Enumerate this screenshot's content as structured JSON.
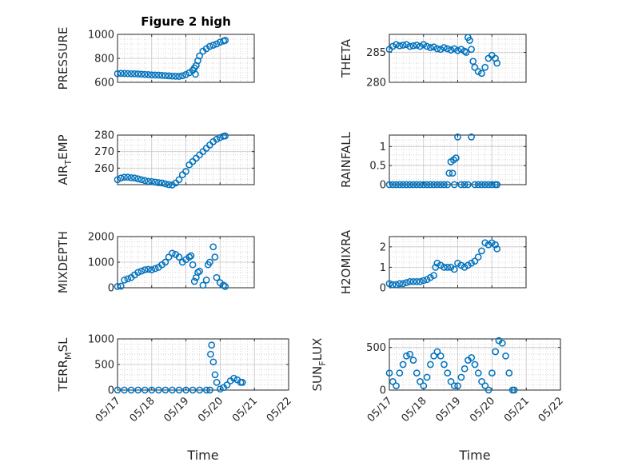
{
  "chart_data": [
    {
      "type": "scatter",
      "title": "Figure 2 high",
      "ylabel": "PRESSURE",
      "ylim": [
        600,
        1000
      ],
      "yticks": [
        600,
        800,
        1000
      ],
      "xlim": [
        0,
        4
      ],
      "grid": true,
      "color": "#0072BD",
      "points": [
        [
          0.0,
          672
        ],
        [
          0.1,
          675
        ],
        [
          0.2,
          674
        ],
        [
          0.3,
          673
        ],
        [
          0.4,
          672
        ],
        [
          0.5,
          671
        ],
        [
          0.6,
          670
        ],
        [
          0.7,
          668
        ],
        [
          0.8,
          666
        ],
        [
          0.9,
          664
        ],
        [
          1.0,
          662
        ],
        [
          1.1,
          661
        ],
        [
          1.2,
          660
        ],
        [
          1.3,
          658
        ],
        [
          1.4,
          656
        ],
        [
          1.5,
          654
        ],
        [
          1.6,
          652
        ],
        [
          1.7,
          651
        ],
        [
          1.8,
          650
        ],
        [
          1.9,
          655
        ],
        [
          2.0,
          665
        ],
        [
          2.1,
          680
        ],
        [
          2.2,
          700
        ],
        [
          2.25,
          720
        ],
        [
          2.28,
          668
        ],
        [
          2.3,
          740
        ],
        [
          2.35,
          780
        ],
        [
          2.4,
          820
        ],
        [
          2.5,
          860
        ],
        [
          2.6,
          880
        ],
        [
          2.7,
          900
        ],
        [
          2.8,
          910
        ],
        [
          2.9,
          920
        ],
        [
          3.0,
          935
        ],
        [
          3.1,
          945
        ],
        [
          3.15,
          950
        ]
      ]
    },
    {
      "type": "scatter",
      "ylabel": "THETA",
      "ylim": [
        280,
        288
      ],
      "yticks": [
        280,
        285
      ],
      "xlim": [
        0,
        4
      ],
      "grid": true,
      "color": "#0072BD",
      "points": [
        [
          0.0,
          285.5
        ],
        [
          0.1,
          286.0
        ],
        [
          0.2,
          286.3
        ],
        [
          0.3,
          286.1
        ],
        [
          0.4,
          286.2
        ],
        [
          0.5,
          286.3
        ],
        [
          0.6,
          286.0
        ],
        [
          0.7,
          286.1
        ],
        [
          0.8,
          286.2
        ],
        [
          0.9,
          286.0
        ],
        [
          1.0,
          286.3
        ],
        [
          1.1,
          286.0
        ],
        [
          1.2,
          285.8
        ],
        [
          1.3,
          285.9
        ],
        [
          1.4,
          285.6
        ],
        [
          1.5,
          285.5
        ],
        [
          1.6,
          285.8
        ],
        [
          1.7,
          285.6
        ],
        [
          1.8,
          285.4
        ],
        [
          1.9,
          285.6
        ],
        [
          2.0,
          285.3
        ],
        [
          2.1,
          285.5
        ],
        [
          2.2,
          285.2
        ],
        [
          2.25,
          285.0
        ],
        [
          2.3,
          287.5
        ],
        [
          2.35,
          287.0
        ],
        [
          2.4,
          285.5
        ],
        [
          2.45,
          283.5
        ],
        [
          2.5,
          282.5
        ],
        [
          2.6,
          281.8
        ],
        [
          2.7,
          281.5
        ],
        [
          2.8,
          282.5
        ],
        [
          2.9,
          284.0
        ],
        [
          3.0,
          284.5
        ],
        [
          3.1,
          284.0
        ],
        [
          3.15,
          283.2
        ]
      ]
    },
    {
      "type": "scatter",
      "ylabel": "AIR_TEMP",
      "ylim": [
        250,
        280
      ],
      "yticks": [
        260,
        270,
        280
      ],
      "xlim": [
        0,
        4
      ],
      "grid": true,
      "color": "#0072BD",
      "points": [
        [
          0.0,
          253
        ],
        [
          0.1,
          254
        ],
        [
          0.2,
          254.5
        ],
        [
          0.3,
          254.5
        ],
        [
          0.4,
          254.2
        ],
        [
          0.5,
          254
        ],
        [
          0.6,
          253.5
        ],
        [
          0.7,
          253
        ],
        [
          0.8,
          252.5
        ],
        [
          0.9,
          252
        ],
        [
          1.0,
          251.8
        ],
        [
          1.1,
          251.5
        ],
        [
          1.2,
          251.2
        ],
        [
          1.3,
          251
        ],
        [
          1.4,
          250.5
        ],
        [
          1.5,
          250
        ],
        [
          1.6,
          249.8
        ],
        [
          1.7,
          251
        ],
        [
          1.8,
          253
        ],
        [
          1.9,
          256
        ],
        [
          2.0,
          258
        ],
        [
          2.1,
          262
        ],
        [
          2.2,
          264
        ],
        [
          2.3,
          266
        ],
        [
          2.4,
          268
        ],
        [
          2.5,
          270
        ],
        [
          2.6,
          272
        ],
        [
          2.7,
          274
        ],
        [
          2.8,
          276
        ],
        [
          2.9,
          277.5
        ],
        [
          3.0,
          278.5
        ],
        [
          3.1,
          279.3
        ],
        [
          3.15,
          279.5
        ]
      ]
    },
    {
      "type": "scatter",
      "ylabel": "RAINFALL",
      "ylim": [
        0,
        1.3
      ],
      "yticks": [
        0,
        0.5,
        1
      ],
      "xlim": [
        0,
        4
      ],
      "grid": true,
      "color": "#0072BD",
      "points": [
        [
          0.0,
          0
        ],
        [
          0.1,
          0
        ],
        [
          0.2,
          0
        ],
        [
          0.3,
          0
        ],
        [
          0.4,
          0
        ],
        [
          0.5,
          0
        ],
        [
          0.6,
          0
        ],
        [
          0.7,
          0
        ],
        [
          0.8,
          0
        ],
        [
          0.9,
          0
        ],
        [
          1.0,
          0
        ],
        [
          1.1,
          0
        ],
        [
          1.2,
          0
        ],
        [
          1.3,
          0
        ],
        [
          1.4,
          0
        ],
        [
          1.5,
          0
        ],
        [
          1.6,
          0
        ],
        [
          1.7,
          0
        ],
        [
          1.75,
          0.3
        ],
        [
          1.8,
          0.6
        ],
        [
          1.85,
          0.3
        ],
        [
          1.88,
          0.65
        ],
        [
          1.9,
          0
        ],
        [
          1.95,
          0.7
        ],
        [
          2.0,
          1.25
        ],
        [
          2.1,
          0
        ],
        [
          2.2,
          0
        ],
        [
          2.3,
          0
        ],
        [
          2.4,
          1.25
        ],
        [
          2.5,
          0
        ],
        [
          2.6,
          0
        ],
        [
          2.7,
          0
        ],
        [
          2.8,
          0
        ],
        [
          2.9,
          0
        ],
        [
          3.0,
          0
        ],
        [
          3.1,
          0
        ],
        [
          3.15,
          0
        ]
      ]
    },
    {
      "type": "scatter",
      "ylabel": "MIXDEPTH",
      "ylim": [
        0,
        2000
      ],
      "yticks": [
        0,
        1000,
        2000
      ],
      "xlim": [
        0,
        4
      ],
      "grid": true,
      "color": "#0072BD",
      "points": [
        [
          0.0,
          50
        ],
        [
          0.1,
          60
        ],
        [
          0.2,
          300
        ],
        [
          0.3,
          350
        ],
        [
          0.4,
          400
        ],
        [
          0.5,
          500
        ],
        [
          0.6,
          600
        ],
        [
          0.7,
          650
        ],
        [
          0.8,
          700
        ],
        [
          0.9,
          720
        ],
        [
          1.0,
          700
        ],
        [
          1.1,
          750
        ],
        [
          1.2,
          800
        ],
        [
          1.3,
          900
        ],
        [
          1.4,
          1000
        ],
        [
          1.5,
          1200
        ],
        [
          1.6,
          1350
        ],
        [
          1.7,
          1300
        ],
        [
          1.8,
          1200
        ],
        [
          1.9,
          1000
        ],
        [
          2.0,
          1100
        ],
        [
          2.1,
          1200
        ],
        [
          2.15,
          1250
        ],
        [
          2.2,
          900
        ],
        [
          2.25,
          250
        ],
        [
          2.3,
          400
        ],
        [
          2.35,
          600
        ],
        [
          2.4,
          650
        ],
        [
          2.5,
          100
        ],
        [
          2.6,
          300
        ],
        [
          2.65,
          900
        ],
        [
          2.7,
          1000
        ],
        [
          2.8,
          1600
        ],
        [
          2.85,
          1200
        ],
        [
          2.9,
          400
        ],
        [
          3.0,
          200
        ],
        [
          3.1,
          100
        ],
        [
          3.15,
          50
        ]
      ]
    },
    {
      "type": "scatter",
      "ylabel": "H2OMIXRA",
      "ylim": [
        0,
        2.5
      ],
      "yticks": [
        0,
        1,
        2
      ],
      "xlim": [
        0,
        4
      ],
      "grid": true,
      "color": "#0072BD",
      "points": [
        [
          0.0,
          0.2
        ],
        [
          0.1,
          0.15
        ],
        [
          0.2,
          0.15
        ],
        [
          0.3,
          0.2
        ],
        [
          0.4,
          0.2
        ],
        [
          0.5,
          0.25
        ],
        [
          0.6,
          0.3
        ],
        [
          0.7,
          0.3
        ],
        [
          0.8,
          0.3
        ],
        [
          0.9,
          0.3
        ],
        [
          1.0,
          0.35
        ],
        [
          1.1,
          0.4
        ],
        [
          1.2,
          0.5
        ],
        [
          1.3,
          0.6
        ],
        [
          1.35,
          1.0
        ],
        [
          1.4,
          1.2
        ],
        [
          1.5,
          1.1
        ],
        [
          1.6,
          1.0
        ],
        [
          1.7,
          1.0
        ],
        [
          1.8,
          1.0
        ],
        [
          1.9,
          0.9
        ],
        [
          2.0,
          1.2
        ],
        [
          2.1,
          1.1
        ],
        [
          2.2,
          1.0
        ],
        [
          2.3,
          1.1
        ],
        [
          2.4,
          1.2
        ],
        [
          2.5,
          1.3
        ],
        [
          2.6,
          1.5
        ],
        [
          2.7,
          1.8
        ],
        [
          2.8,
          2.2
        ],
        [
          2.9,
          2.1
        ],
        [
          3.0,
          2.2
        ],
        [
          3.1,
          2.1
        ],
        [
          3.15,
          1.9
        ]
      ]
    },
    {
      "type": "scatter",
      "ylabel": "TERR_MSL",
      "ylim": [
        0,
        1000
      ],
      "yticks": [
        0,
        500,
        1000
      ],
      "xlim": [
        0,
        5
      ],
      "xticks": [
        "05/17",
        "05/18",
        "05/19",
        "05/20",
        "05/21",
        "05/22"
      ],
      "xlabel": "Time",
      "grid": true,
      "color": "#0072BD",
      "points": [
        [
          0.0,
          0
        ],
        [
          0.2,
          0
        ],
        [
          0.4,
          0
        ],
        [
          0.6,
          0
        ],
        [
          0.8,
          0
        ],
        [
          1.0,
          0
        ],
        [
          1.2,
          0
        ],
        [
          1.4,
          0
        ],
        [
          1.6,
          0
        ],
        [
          1.8,
          0
        ],
        [
          2.0,
          0
        ],
        [
          2.2,
          0
        ],
        [
          2.4,
          0
        ],
        [
          2.6,
          0
        ],
        [
          2.7,
          0
        ],
        [
          2.72,
          700
        ],
        [
          2.75,
          880
        ],
        [
          2.8,
          550
        ],
        [
          2.85,
          300
        ],
        [
          2.9,
          150
        ],
        [
          3.0,
          20
        ],
        [
          3.1,
          50
        ],
        [
          3.2,
          100
        ],
        [
          3.3,
          180
        ],
        [
          3.4,
          230
        ],
        [
          3.5,
          200
        ],
        [
          3.6,
          150
        ],
        [
          3.65,
          150
        ]
      ]
    },
    {
      "type": "scatter",
      "ylabel": "SUN_FLUX",
      "ylim": [
        0,
        600
      ],
      "yticks": [
        0,
        500
      ],
      "xlim": [
        0,
        5
      ],
      "xticks": [
        "05/17",
        "05/18",
        "05/19",
        "05/20",
        "05/21",
        "05/22"
      ],
      "xlabel": "Time",
      "grid": true,
      "color": "#0072BD",
      "points": [
        [
          0.0,
          200
        ],
        [
          0.1,
          100
        ],
        [
          0.2,
          50
        ],
        [
          0.3,
          200
        ],
        [
          0.4,
          300
        ],
        [
          0.5,
          400
        ],
        [
          0.6,
          420
        ],
        [
          0.7,
          350
        ],
        [
          0.8,
          200
        ],
        [
          0.9,
          100
        ],
        [
          1.0,
          50
        ],
        [
          1.1,
          150
        ],
        [
          1.2,
          300
        ],
        [
          1.3,
          400
        ],
        [
          1.4,
          450
        ],
        [
          1.5,
          400
        ],
        [
          1.6,
          300
        ],
        [
          1.7,
          200
        ],
        [
          1.8,
          100
        ],
        [
          1.9,
          50
        ],
        [
          2.0,
          50
        ],
        [
          2.1,
          150
        ],
        [
          2.2,
          250
        ],
        [
          2.3,
          350
        ],
        [
          2.4,
          380
        ],
        [
          2.5,
          300
        ],
        [
          2.6,
          200
        ],
        [
          2.7,
          100
        ],
        [
          2.8,
          50
        ],
        [
          2.9,
          0
        ],
        [
          3.0,
          200
        ],
        [
          3.1,
          450
        ],
        [
          3.2,
          580
        ],
        [
          3.3,
          550
        ],
        [
          3.4,
          400
        ],
        [
          3.5,
          200
        ],
        [
          3.6,
          0
        ],
        [
          3.65,
          0
        ]
      ]
    }
  ]
}
